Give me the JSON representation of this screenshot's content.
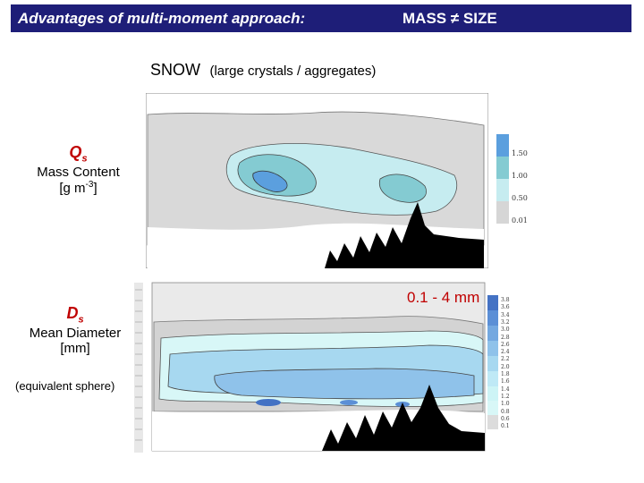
{
  "header": {
    "left": "Advantages of multi-moment approach:",
    "right": "MASS ≠ SIZE"
  },
  "subtitle": {
    "main": "SNOW",
    "note": "(large crystals / aggregates)"
  },
  "qs_label": {
    "symbol": "Q",
    "subscript": "s",
    "name": "Mass Content",
    "unit_prefix": "[g m",
    "unit_exp": "-3",
    "unit_suffix": "]"
  },
  "ds_label": {
    "symbol": "D",
    "subscript": "s",
    "name": "Mean Diameter",
    "unit": "[mm]",
    "note": "(equivalent sphere)"
  },
  "range_note": "0.1 - 4 mm",
  "qs_colorbar": {
    "ticks": [
      "1.50",
      "1.00",
      "0.50",
      "0.01"
    ],
    "colors": [
      "#5b9fde",
      "#84cbd2",
      "#c6ecf0",
      "#d6d6d6"
    ]
  },
  "ds_colorbar": {
    "ticks": [
      "3.8",
      "3.6",
      "3.4",
      "3.2",
      "3.0",
      "2.8",
      "2.6",
      "2.4",
      "2.2",
      "2.0",
      "1.8",
      "1.6",
      "1.4",
      "1.2",
      "1.0",
      "0.8",
      "0.6",
      "0.1"
    ],
    "colors": [
      "#4472c4",
      "#5b8fd6",
      "#74a8e0",
      "#8fc2ea",
      "#a7d8f0",
      "#bfe9f6",
      "#cdf4f6",
      "#d8f7f7",
      "#dcdcdc"
    ]
  }
}
